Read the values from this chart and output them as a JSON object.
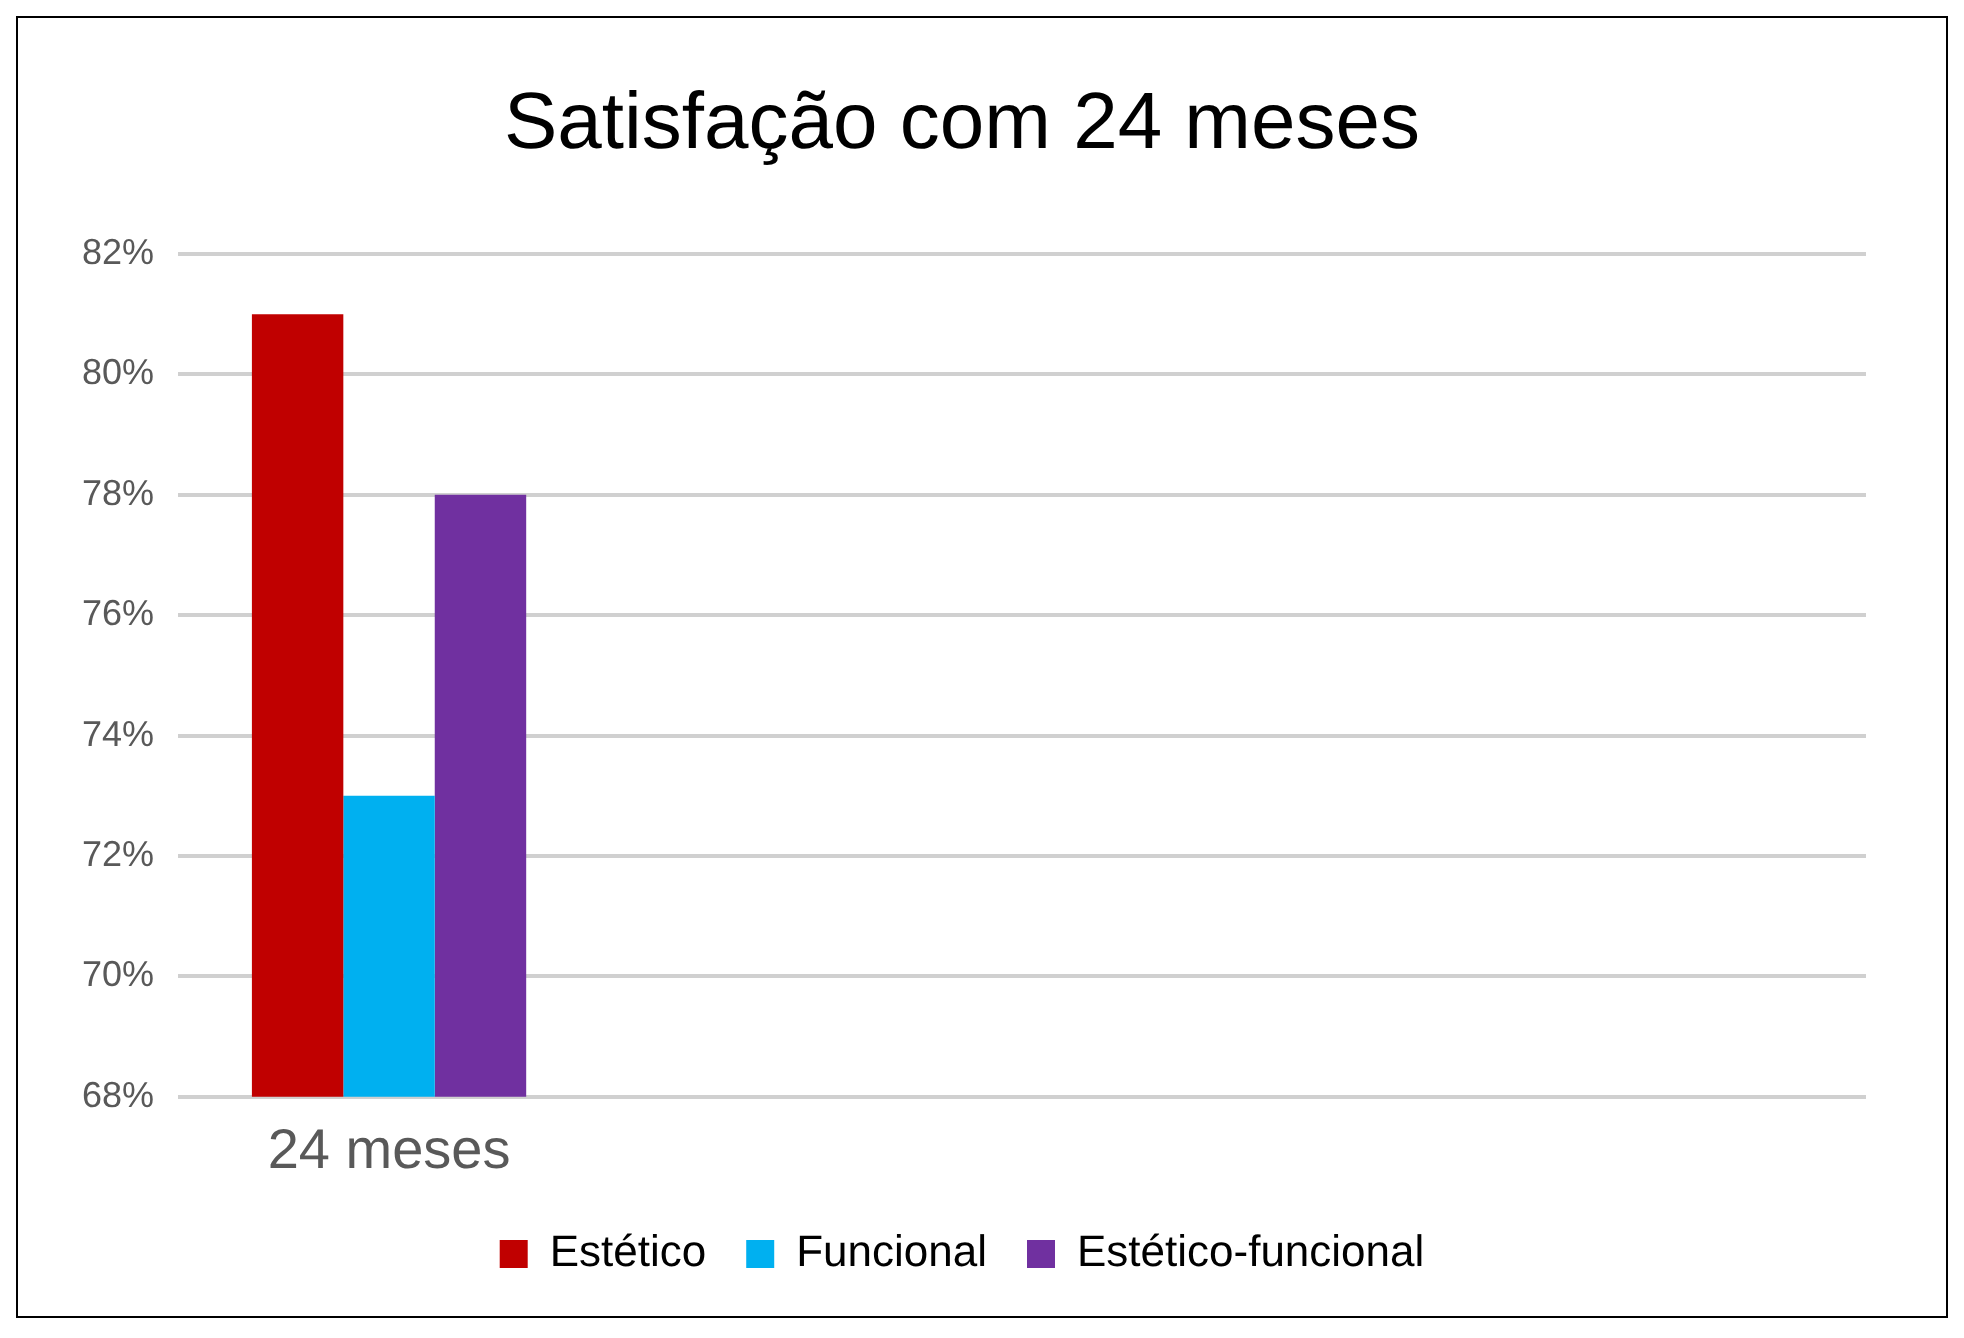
{
  "chart_data": {
    "type": "bar",
    "title": "Satisfação com 24 meses",
    "categories": [
      "24 meses",
      null,
      null,
      null
    ],
    "series": [
      {
        "name": "Estético",
        "color": "#c00000",
        "values": [
          81,
          null,
          null,
          null
        ]
      },
      {
        "name": "Funcional",
        "color": "#00b0f0",
        "values": [
          73,
          null,
          null,
          null
        ]
      },
      {
        "name": "Estético-funcional",
        "color": "#7030a0",
        "values": [
          78,
          null,
          null,
          null
        ]
      }
    ],
    "ylim": [
      68,
      82
    ],
    "yticks": [
      {
        "value": 68,
        "label": "68%"
      },
      {
        "value": 70,
        "label": "70%"
      },
      {
        "value": 72,
        "label": "72%"
      },
      {
        "value": 74,
        "label": "74%"
      },
      {
        "value": 76,
        "label": "76%"
      },
      {
        "value": 78,
        "label": "78%"
      },
      {
        "value": 80,
        "label": "80%"
      },
      {
        "value": 82,
        "label": "82%"
      }
    ],
    "grid": "y",
    "legend": "bottom"
  }
}
